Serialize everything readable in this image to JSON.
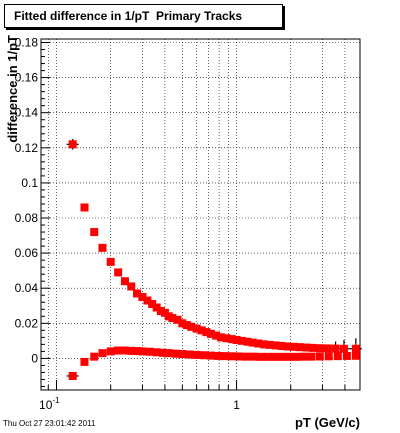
{
  "timestamp": "Thu Oct 27 23:01:42 2011",
  "chart_data": {
    "type": "scatter",
    "title": "Fitted difference in 1/pT  Primary Tracks",
    "xlabel": "pT (GeV/c)",
    "ylabel": "difference in 1/pT",
    "xscale": "log",
    "xlim": [
      0.082,
      4.85
    ],
    "ylim": [
      -0.018,
      0.182
    ],
    "grid": true,
    "yticks": [
      0,
      0.02,
      0.04,
      0.06,
      0.08,
      0.1,
      0.12,
      0.14,
      0.16,
      0.18
    ],
    "ytick_labels": [
      "0",
      "0.02",
      "0.04",
      "0.06",
      "0.08",
      "0.1",
      "0.12",
      "0.14",
      "0.16",
      "0.18"
    ],
    "xtick_labels": [
      {
        "value": 0.1,
        "base": "10",
        "exponent": "-1"
      },
      {
        "value": 1,
        "base": "1",
        "exponent": ""
      }
    ],
    "marker_color": "#ff0000",
    "error_color": "#000000",
    "series": [
      {
        "points": [
          {
            "x": 0.123,
            "y": 0.122
          },
          {
            "x": 0.143,
            "y": 0.086
          },
          {
            "x": 0.162,
            "y": 0.072
          },
          {
            "x": 0.18,
            "y": 0.063
          },
          {
            "x": 0.2,
            "y": 0.055
          },
          {
            "x": 0.22,
            "y": 0.049
          },
          {
            "x": 0.24,
            "y": 0.044
          },
          {
            "x": 0.26,
            "y": 0.041
          },
          {
            "x": 0.28,
            "y": 0.037
          },
          {
            "x": 0.3,
            "y": 0.035
          },
          {
            "x": 0.32,
            "y": 0.033
          },
          {
            "x": 0.34,
            "y": 0.031
          },
          {
            "x": 0.36,
            "y": 0.029
          },
          {
            "x": 0.38,
            "y": 0.027
          },
          {
            "x": 0.4,
            "y": 0.026
          },
          {
            "x": 0.42,
            "y": 0.024
          },
          {
            "x": 0.44,
            "y": 0.023
          },
          {
            "x": 0.47,
            "y": 0.022
          },
          {
            "x": 0.5,
            "y": 0.02
          },
          {
            "x": 0.53,
            "y": 0.019
          },
          {
            "x": 0.56,
            "y": 0.018
          },
          {
            "x": 0.6,
            "y": 0.017
          },
          {
            "x": 0.64,
            "y": 0.016
          },
          {
            "x": 0.68,
            "y": 0.015
          },
          {
            "x": 0.72,
            "y": 0.014
          },
          {
            "x": 0.77,
            "y": 0.013
          },
          {
            "x": 0.82,
            "y": 0.012
          },
          {
            "x": 0.88,
            "y": 0.0115
          },
          {
            "x": 0.94,
            "y": 0.011
          },
          {
            "x": 1.0,
            "y": 0.0105
          },
          {
            "x": 1.07,
            "y": 0.01
          },
          {
            "x": 1.15,
            "y": 0.0095
          },
          {
            "x": 1.23,
            "y": 0.009
          },
          {
            "x": 1.32,
            "y": 0.0085
          },
          {
            "x": 1.42,
            "y": 0.008
          },
          {
            "x": 1.53,
            "y": 0.0077
          },
          {
            "x": 1.65,
            "y": 0.0074
          },
          {
            "x": 1.78,
            "y": 0.0071
          },
          {
            "x": 1.92,
            "y": 0.0068
          },
          {
            "x": 2.08,
            "y": 0.0066
          },
          {
            "x": 2.25,
            "y": 0.0064
          },
          {
            "x": 2.44,
            "y": 0.0062
          },
          {
            "x": 2.65,
            "y": 0.006
          },
          {
            "x": 2.9,
            "y": 0.0058
          },
          {
            "x": 3.2,
            "y": 0.0057
          },
          {
            "x": 3.55,
            "y": 0.0056
          },
          {
            "x": 3.95,
            "y": 0.0055
          },
          {
            "x": 4.6,
            "y": 0.0055
          }
        ]
      },
      {
        "points": [
          {
            "x": 0.123,
            "y": -0.01
          },
          {
            "x": 0.143,
            "y": -0.002
          },
          {
            "x": 0.162,
            "y": 0.001
          },
          {
            "x": 0.18,
            "y": 0.003
          },
          {
            "x": 0.2,
            "y": 0.004
          },
          {
            "x": 0.22,
            "y": 0.0045
          },
          {
            "x": 0.24,
            "y": 0.0045
          },
          {
            "x": 0.26,
            "y": 0.0043
          },
          {
            "x": 0.28,
            "y": 0.0042
          },
          {
            "x": 0.3,
            "y": 0.004
          },
          {
            "x": 0.33,
            "y": 0.0038
          },
          {
            "x": 0.36,
            "y": 0.0035
          },
          {
            "x": 0.39,
            "y": 0.0032
          },
          {
            "x": 0.42,
            "y": 0.003
          },
          {
            "x": 0.46,
            "y": 0.0027
          },
          {
            "x": 0.5,
            "y": 0.0025
          },
          {
            "x": 0.55,
            "y": 0.0022
          },
          {
            "x": 0.6,
            "y": 0.002
          },
          {
            "x": 0.66,
            "y": 0.0018
          },
          {
            "x": 0.72,
            "y": 0.0016
          },
          {
            "x": 0.79,
            "y": 0.0014
          },
          {
            "x": 0.86,
            "y": 0.0013
          },
          {
            "x": 0.94,
            "y": 0.0012
          },
          {
            "x": 1.03,
            "y": 0.0011
          },
          {
            "x": 1.13,
            "y": 0.001
          },
          {
            "x": 1.24,
            "y": 0.001
          },
          {
            "x": 1.36,
            "y": 0.0009
          },
          {
            "x": 1.49,
            "y": 0.0009
          },
          {
            "x": 1.63,
            "y": 0.0009
          },
          {
            "x": 1.79,
            "y": 0.0009
          },
          {
            "x": 1.96,
            "y": 0.0009
          },
          {
            "x": 2.15,
            "y": 0.0009
          },
          {
            "x": 2.36,
            "y": 0.001
          },
          {
            "x": 2.6,
            "y": 0.001
          },
          {
            "x": 2.9,
            "y": 0.0011
          },
          {
            "x": 3.25,
            "y": 0.0012
          },
          {
            "x": 3.65,
            "y": 0.0013
          },
          {
            "x": 4.1,
            "y": 0.0014
          },
          {
            "x": 4.6,
            "y": 0.0015
          }
        ]
      }
    ],
    "error_bars": [
      {
        "x": 0.123,
        "y": 0.122,
        "yerr": 0.003
      },
      {
        "x": 0.123,
        "y": -0.01,
        "yerr": 0.001
      },
      {
        "x": 3.55,
        "y": 0.0056,
        "yerr": 0.004
      },
      {
        "x": 3.95,
        "y": 0.0055,
        "yerr": 0.005
      },
      {
        "x": 4.6,
        "y": 0.0055,
        "yerr": 0.006
      }
    ]
  }
}
